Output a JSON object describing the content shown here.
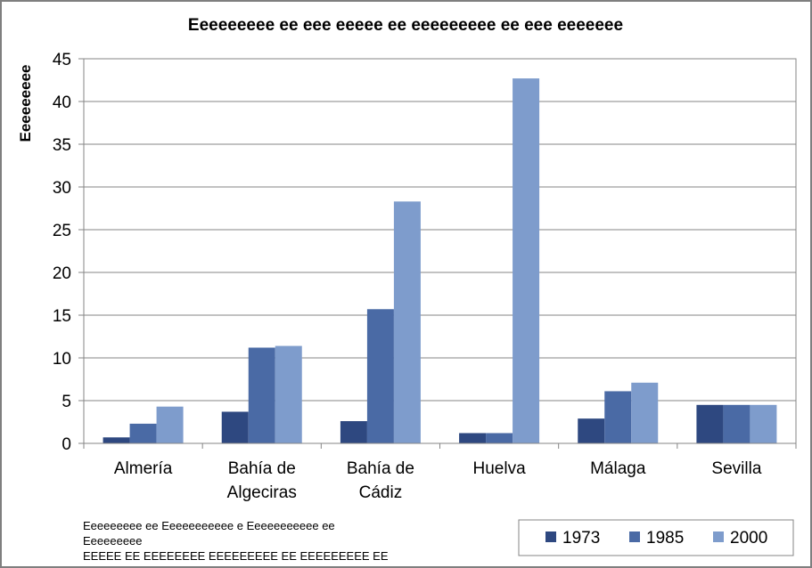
{
  "chart_data": {
    "type": "bar",
    "title": "Eeeeeeeee ee eee eeeee ee eeeeeeeee ee eee eeeeeee",
    "ylabel": "Eeeeeeeee",
    "xlabel": "",
    "ylim": [
      0,
      45
    ],
    "yticks": [
      "0",
      "5",
      "10",
      "15",
      "20",
      "25",
      "30",
      "35",
      "40",
      "45"
    ],
    "ytick_values": [
      0,
      5,
      10,
      15,
      20,
      25,
      30,
      35,
      40,
      45
    ],
    "grid": true,
    "legend_position": "bottom-right",
    "categories": [
      [
        "Almería"
      ],
      [
        "Bahía de",
        "Algeciras"
      ],
      [
        "Bahía de",
        "Cádiz"
      ],
      [
        "Huelva"
      ],
      [
        "Málaga"
      ],
      [
        "Sevilla"
      ]
    ],
    "series": [
      {
        "name": "1973",
        "color": "#2e4880",
        "values": [
          0.7,
          3.7,
          2.6,
          1.2,
          2.9,
          4.5
        ]
      },
      {
        "name": "1985",
        "color": "#4a6aa5",
        "values": [
          2.3,
          11.2,
          15.7,
          1.2,
          6.1,
          4.5
        ]
      },
      {
        "name": "2000",
        "color": "#7e9ccc",
        "values": [
          4.3,
          11.4,
          28.3,
          42.7,
          7.1,
          4.5
        ]
      }
    ]
  },
  "source_note": {
    "line1": "Eeeeeeeee ee Eeeeeeeeeee e Eeeeeeeeeee ee",
    "line2": "Eeeeeeeee",
    "line3": "EEEEE EE EEEEEEEE EEEEEEEEE EE EEEEEEEEE EE"
  }
}
